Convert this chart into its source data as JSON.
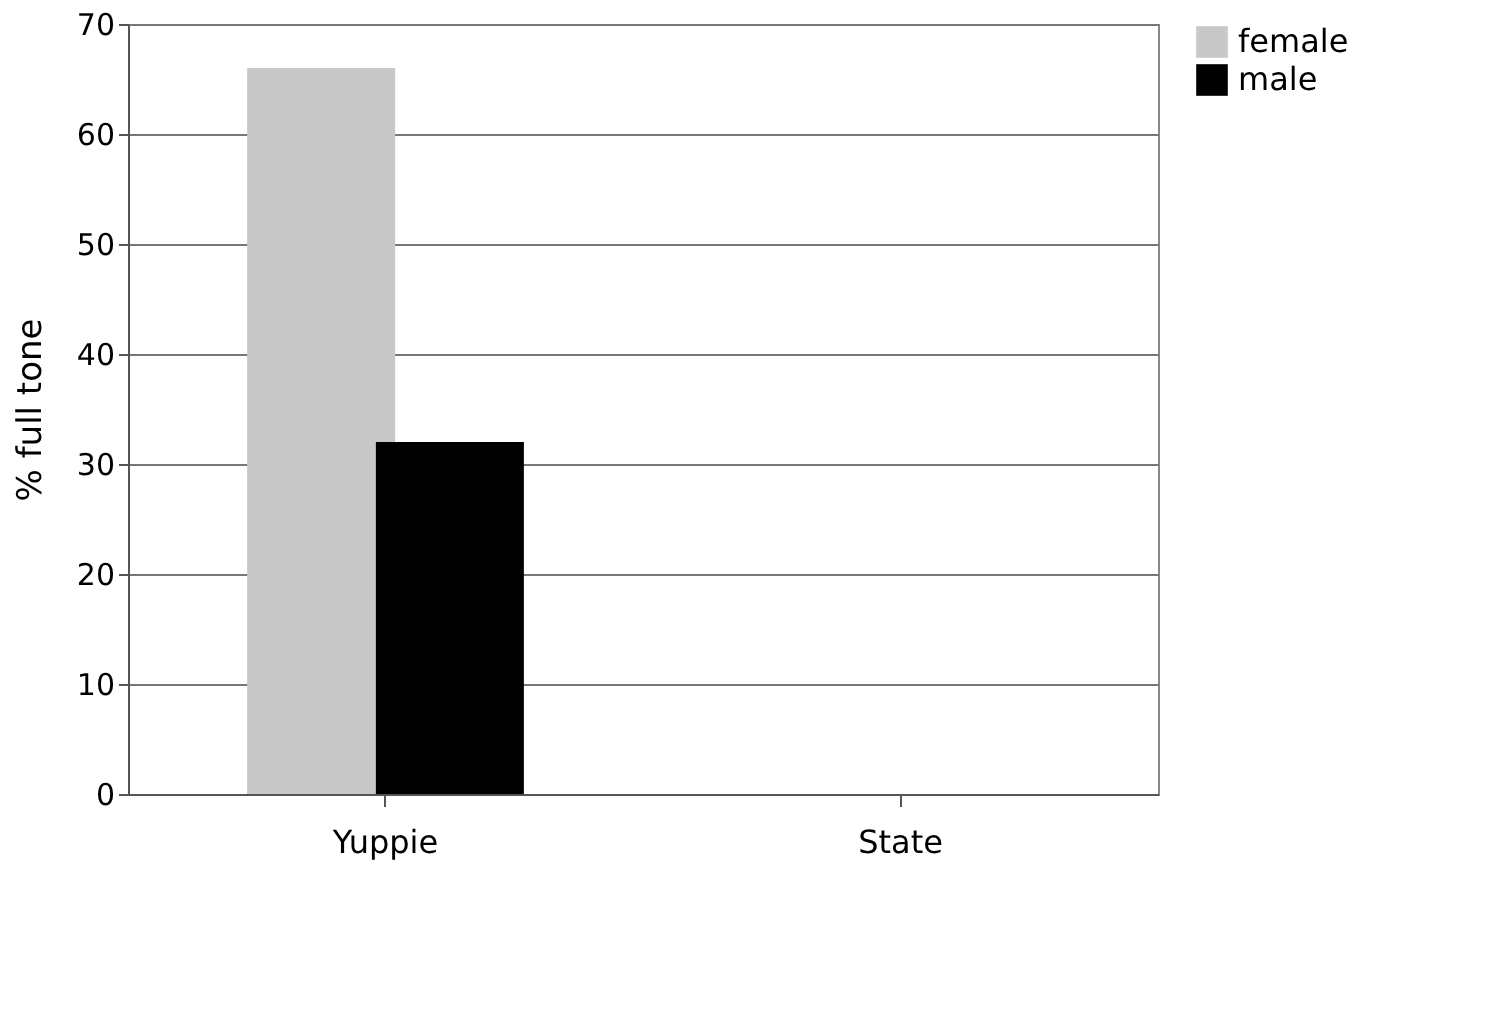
{
  "chart_data": {
    "type": "bar",
    "categories": [
      "Yuppie",
      "State"
    ],
    "ylabel": "% full tone",
    "series": [
      {
        "name": "female",
        "color": "#c8c8c8",
        "values": [
          66,
          0
        ]
      },
      {
        "name": "male",
        "color": "#000000",
        "values": [
          32,
          0
        ]
      }
    ],
    "ylim": [
      0,
      70
    ],
    "yticks": [
      0,
      10,
      20,
      30,
      40,
      50,
      60,
      70
    ],
    "grid": "y",
    "legend": "right"
  }
}
